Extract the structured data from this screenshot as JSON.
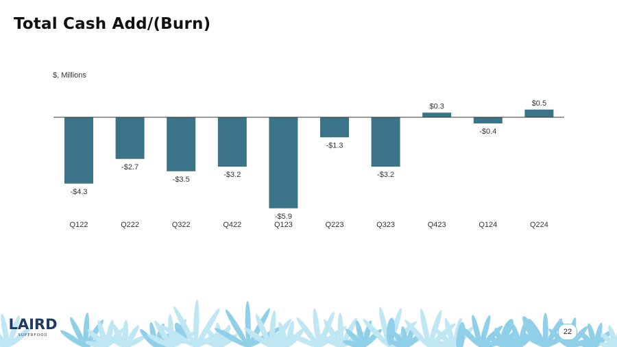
{
  "slide": {
    "title": "Total Cash Add/(Burn)",
    "unit_label": "$, Millions",
    "page_number": "22"
  },
  "logo": {
    "brand": "LAIRD",
    "tagline": "SUPERFOOD"
  },
  "colors": {
    "bar": "#3b7489",
    "axis": "#333333",
    "footer_leaf_light": "#bfe6f3",
    "footer_leaf_mid": "#8fd0e8",
    "logo": "#1f3a66"
  },
  "chart_data": {
    "type": "bar",
    "categories": [
      "Q122",
      "Q222",
      "Q322",
      "Q422",
      "Q123",
      "Q223",
      "Q323",
      "Q423",
      "Q124",
      "Q224"
    ],
    "values": [
      -4.3,
      -2.7,
      -3.5,
      -3.2,
      -5.9,
      -1.3,
      -3.2,
      0.3,
      -0.4,
      0.5
    ],
    "value_labels": [
      "-$4.3",
      "-$2.7",
      "-$3.5",
      "-$3.2",
      "-$5.9",
      "-$1.3",
      "-$3.2",
      "$0.3",
      "-$0.4",
      "$0.5"
    ],
    "title": "Total Cash Add/(Burn)",
    "ylabel": "$, Millions",
    "xlabel": "",
    "ylim": [
      -6,
      1
    ],
    "grid": false,
    "legend": "none"
  }
}
